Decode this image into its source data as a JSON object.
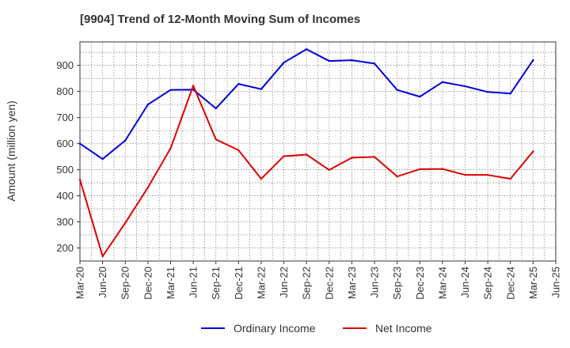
{
  "chart_data": {
    "type": "line",
    "title": "[9904]  Trend of 12-Month Moving Sum of Incomes",
    "xlabel": "",
    "ylabel": "Amount (million yen)",
    "ylim": [
      150,
      990
    ],
    "yticks": [
      200,
      300,
      400,
      500,
      600,
      700,
      800,
      900
    ],
    "categories": [
      "Mar-20",
      "Jun-20",
      "Sep-20",
      "Dec-20",
      "Mar-21",
      "Jun-21",
      "Sep-21",
      "Dec-21",
      "Mar-22",
      "Jun-22",
      "Sep-22",
      "Dec-22",
      "Mar-23",
      "Jun-23",
      "Sep-23",
      "Dec-23",
      "Mar-24",
      "Jun-24",
      "Sep-24",
      "Dec-24",
      "Mar-25",
      "Jun-25"
    ],
    "grid": true,
    "legend_position": "bottom-center",
    "series": [
      {
        "name": "Ordinary Income",
        "color": "#0000dd",
        "values": [
          600,
          541,
          612,
          750,
          806,
          807,
          735,
          829,
          809,
          911,
          962,
          917,
          920,
          907,
          806,
          780,
          836,
          820,
          798,
          792,
          920,
          null
        ]
      },
      {
        "name": "Net Income",
        "color": "#dd0000",
        "values": [
          462,
          168,
          296,
          432,
          582,
          822,
          616,
          575,
          465,
          552,
          558,
          499,
          546,
          549,
          474,
          502,
          503,
          480,
          480,
          465,
          570,
          null
        ]
      }
    ]
  }
}
